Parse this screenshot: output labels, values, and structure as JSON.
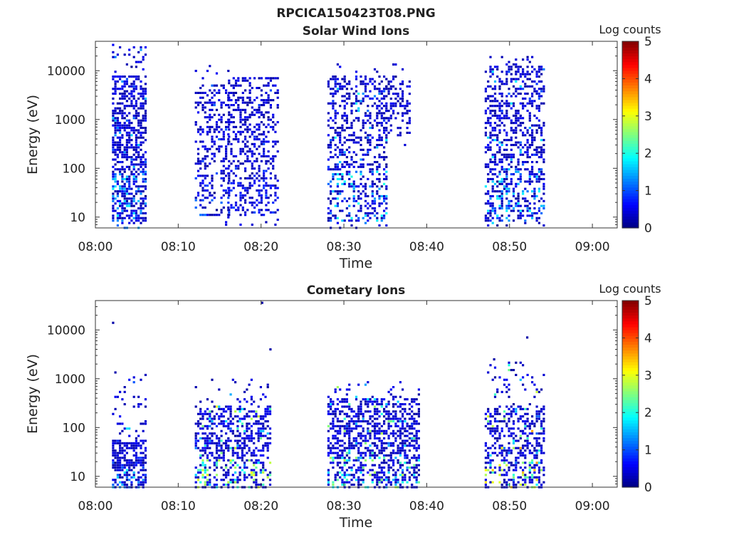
{
  "figure_title": "RPCICA150423T08.PNG",
  "colorbar": {
    "label": "Log counts",
    "ticks": [
      "0",
      "1",
      "2",
      "3",
      "4",
      "5"
    ],
    "range": [
      0,
      5
    ],
    "colormap": "jet"
  },
  "chart_data": [
    {
      "type": "heatmap",
      "title": "Solar Wind Ions",
      "xlabel": "Time",
      "ylabel": "Energy (eV)",
      "xlim": [
        "08:00",
        "09:03"
      ],
      "x_ticks": [
        "08:00",
        "08:10",
        "08:20",
        "08:30",
        "08:40",
        "08:50",
        "09:00"
      ],
      "y_scale": "log",
      "ylim": [
        6,
        40000
      ],
      "y_ticks": [
        "10",
        "100",
        "1000",
        "10000"
      ],
      "grid": false,
      "bursts": [
        {
          "start": "08:02",
          "end": "08:05",
          "e_low": 6,
          "e_high": 36000,
          "core_low": 8,
          "core_high": 8000,
          "peak_log_counts": 1.8,
          "density": 0.55
        },
        {
          "start": "08:12",
          "end": "08:15",
          "e_low": 7,
          "e_high": 17000,
          "core_low": 10,
          "core_high": 5000,
          "peak_log_counts": 1.2,
          "density": 0.3
        },
        {
          "start": "08:16",
          "end": "08:21",
          "e_low": 7,
          "e_high": 7000,
          "core_low": 10,
          "core_high": 7000,
          "peak_log_counts": 1.0,
          "density": 0.35
        },
        {
          "start": "08:28",
          "end": "08:34",
          "e_low": 6,
          "e_high": 14000,
          "core_low": 8,
          "core_high": 8000,
          "peak_log_counts": 2.0,
          "density": 0.35
        },
        {
          "start": "08:35",
          "end": "08:37",
          "e_low": 300,
          "e_high": 15000,
          "core_low": 500,
          "core_high": 8000,
          "peak_log_counts": 0.5,
          "density": 0.3
        },
        {
          "start": "08:47",
          "end": "08:53",
          "e_low": 6,
          "e_high": 19000,
          "core_low": 8,
          "core_high": 12000,
          "peak_log_counts": 1.9,
          "density": 0.4
        }
      ]
    },
    {
      "type": "heatmap",
      "title": "Cometary Ions",
      "xlabel": "Time",
      "ylabel": "Energy (eV)",
      "xlim": [
        "08:00",
        "09:03"
      ],
      "x_ticks": [
        "08:00",
        "08:10",
        "08:20",
        "08:30",
        "08:40",
        "08:50",
        "09:00"
      ],
      "y_scale": "log",
      "ylim": [
        6,
        40000
      ],
      "y_ticks": [
        "10",
        "100",
        "1000",
        "10000"
      ],
      "grid": false,
      "bursts": [
        {
          "start": "08:02",
          "end": "08:05",
          "e_low": 6,
          "e_high": 1500,
          "core_low": 6,
          "core_high": 60,
          "peak_log_counts": 1.8,
          "density": 0.6
        },
        {
          "start": "08:12",
          "end": "08:20",
          "e_low": 6,
          "e_high": 1000,
          "core_low": 6,
          "core_high": 300,
          "peak_log_counts": 3.1,
          "density": 0.45
        },
        {
          "start": "08:28",
          "end": "08:38",
          "e_low": 6,
          "e_high": 1000,
          "core_low": 6,
          "core_high": 400,
          "peak_log_counts": 2.8,
          "density": 0.5
        },
        {
          "start": "08:47",
          "end": "08:53",
          "e_low": 6,
          "e_high": 2500,
          "core_low": 6,
          "core_high": 300,
          "peak_log_counts": 3.6,
          "density": 0.45
        }
      ],
      "isolated_points": [
        {
          "time": "08:02",
          "energy": 14000,
          "log_counts": 0.2
        },
        {
          "time": "08:20",
          "energy": 36000,
          "log_counts": 0.2
        },
        {
          "time": "08:21",
          "energy": 4000,
          "log_counts": 0.2
        },
        {
          "time": "08:48",
          "energy": 2500,
          "log_counts": 0.2
        },
        {
          "time": "08:52",
          "energy": 7000,
          "log_counts": 0.2
        }
      ]
    }
  ]
}
